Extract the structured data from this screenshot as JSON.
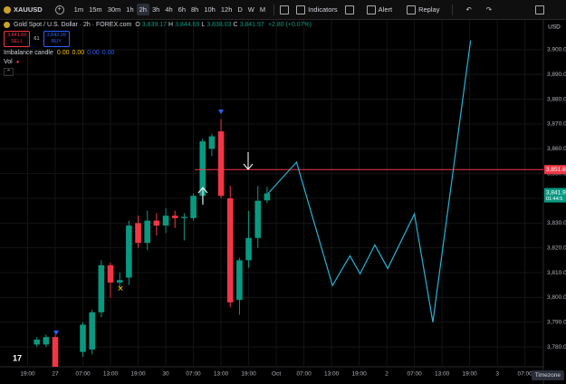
{
  "toolbar": {
    "symbol": "XAUUSD",
    "intervals": [
      "1m",
      "15m",
      "30m",
      "1h",
      "2h",
      "3h",
      "4h",
      "6h",
      "8h",
      "10h",
      "12h",
      "D",
      "W",
      "M"
    ],
    "indicators": "Indicators",
    "alert": "Alert",
    "replay": "Replay"
  },
  "legend": {
    "title": "Gold Spot / U.S. Dollar · 2h · FOREX.com",
    "ohlc": [
      "O",
      "3,839.17",
      "H",
      "3,844.69",
      "L",
      "3,838.03",
      "C",
      "3,841.97"
    ],
    "change": "+2.80 (+0.07%)",
    "sell_price": "3,841.66",
    "sell": "SELL",
    "spread": "61",
    "buy_price": "3,842.28",
    "buy": "BUY",
    "indicator": "Imbalance candle",
    "indicator_values": [
      "0.00",
      "0.00",
      "0.00",
      "0.00"
    ],
    "vol": "Vol"
  },
  "price_axis": {
    "currency": "USD",
    "countdown": "01:44:5"
  },
  "timezone": "Timezone",
  "chart_data": {
    "type": "candlestick",
    "up_color": "#089981",
    "down_color": "#f23645",
    "x": [
      1,
      2,
      3,
      6,
      7,
      8,
      9,
      10,
      11,
      12,
      13,
      14,
      15,
      16,
      17,
      18,
      19,
      20,
      21,
      22,
      23,
      24,
      25,
      26
    ],
    "open": [
      3781,
      3781,
      3784,
      3778,
      3779,
      3794,
      3813,
      3806,
      3808,
      3830,
      3822,
      3831,
      3829,
      3833,
      3832,
      3832,
      3841,
      3860,
      3867,
      3840,
      3799,
      3815,
      3824,
      3839.17
    ],
    "high": [
      3784,
      3785,
      3785,
      3790,
      3795,
      3815,
      3814,
      3810,
      3831,
      3833,
      3835,
      3834,
      3836,
      3835,
      3834,
      3842,
      3864,
      3866,
      3872,
      3845,
      3816,
      3835,
      3845,
      3844.69
    ],
    "low": [
      3780,
      3780,
      3767,
      3776,
      3777,
      3792,
      3800,
      3804,
      3805,
      3820,
      3819,
      3825,
      3826,
      3828,
      3823,
      3831,
      3838,
      3857,
      3840,
      3796,
      3793,
      3812,
      3820,
      3838.03
    ],
    "close": [
      3783,
      3784,
      3768,
      3789,
      3794,
      3813,
      3806,
      3807,
      3829,
      3822,
      3831,
      3829,
      3833,
      3832,
      3832.5,
      3841,
      3863,
      3865,
      3841,
      3798,
      3815,
      3824,
      3839,
      3841.97
    ],
    "projection": {
      "color": "#22b5d8",
      "x": [
        26.1,
        29.2,
        33.1,
        35,
        36.1,
        37.7,
        39.1,
        42,
        44,
        48.1
      ],
      "values": [
        3841.9,
        3854.6,
        3804.8,
        3816.8,
        3809.5,
        3821.2,
        3811.7,
        3833.7,
        3790,
        3903.7
      ]
    },
    "level": {
      "value": 3851.6,
      "label": "3,851.6",
      "color": "#f23645"
    },
    "last": {
      "value": 3841.97,
      "label": "3,841.97"
    },
    "xlim": [
      -3,
      56
    ],
    "ylim": [
      3772,
      3912
    ],
    "xticks": [
      {
        "value": 0,
        "label": "19:00"
      },
      {
        "value": 3,
        "label": "27"
      },
      {
        "value": 6,
        "label": "07:00"
      },
      {
        "value": 9,
        "label": "13:00"
      },
      {
        "value": 12,
        "label": "19:00"
      },
      {
        "value": 15,
        "label": "30"
      },
      {
        "value": 18,
        "label": "07:00"
      },
      {
        "value": 21,
        "label": "13:00"
      },
      {
        "value": 24,
        "label": "19:00"
      },
      {
        "value": 27,
        "label": "Oct"
      },
      {
        "value": 30,
        "label": "07:00"
      },
      {
        "value": 33,
        "label": "13:00"
      },
      {
        "value": 36,
        "label": "19:00"
      },
      {
        "value": 39,
        "label": "2"
      },
      {
        "value": 42,
        "label": "07:00"
      },
      {
        "value": 45,
        "label": "13:00"
      },
      {
        "value": 48,
        "label": "19:00"
      },
      {
        "value": 51,
        "label": "3"
      },
      {
        "value": 54,
        "label": "07:00"
      }
    ],
    "yticks": [
      {
        "value": 3780,
        "label": "3,780.00"
      },
      {
        "value": 3790,
        "label": "3,790.00"
      },
      {
        "value": 3800,
        "label": "3,800.00"
      },
      {
        "value": 3810,
        "label": "3,810.00"
      },
      {
        "value": 3820,
        "label": "3,820.00"
      },
      {
        "value": 3830,
        "label": "3,830.00"
      },
      {
        "value": 3840,
        "label": "3,840.00"
      },
      {
        "value": 3850,
        "label": "3,850.00"
      },
      {
        "value": 3860,
        "label": "3,860.00"
      },
      {
        "value": 3870,
        "label": "3,870.00"
      },
      {
        "value": 3880,
        "label": "3,880.00"
      },
      {
        "value": 3890,
        "label": "3,890.00"
      },
      {
        "value": 3900,
        "label": "3,900.00"
      }
    ],
    "grid": true
  }
}
